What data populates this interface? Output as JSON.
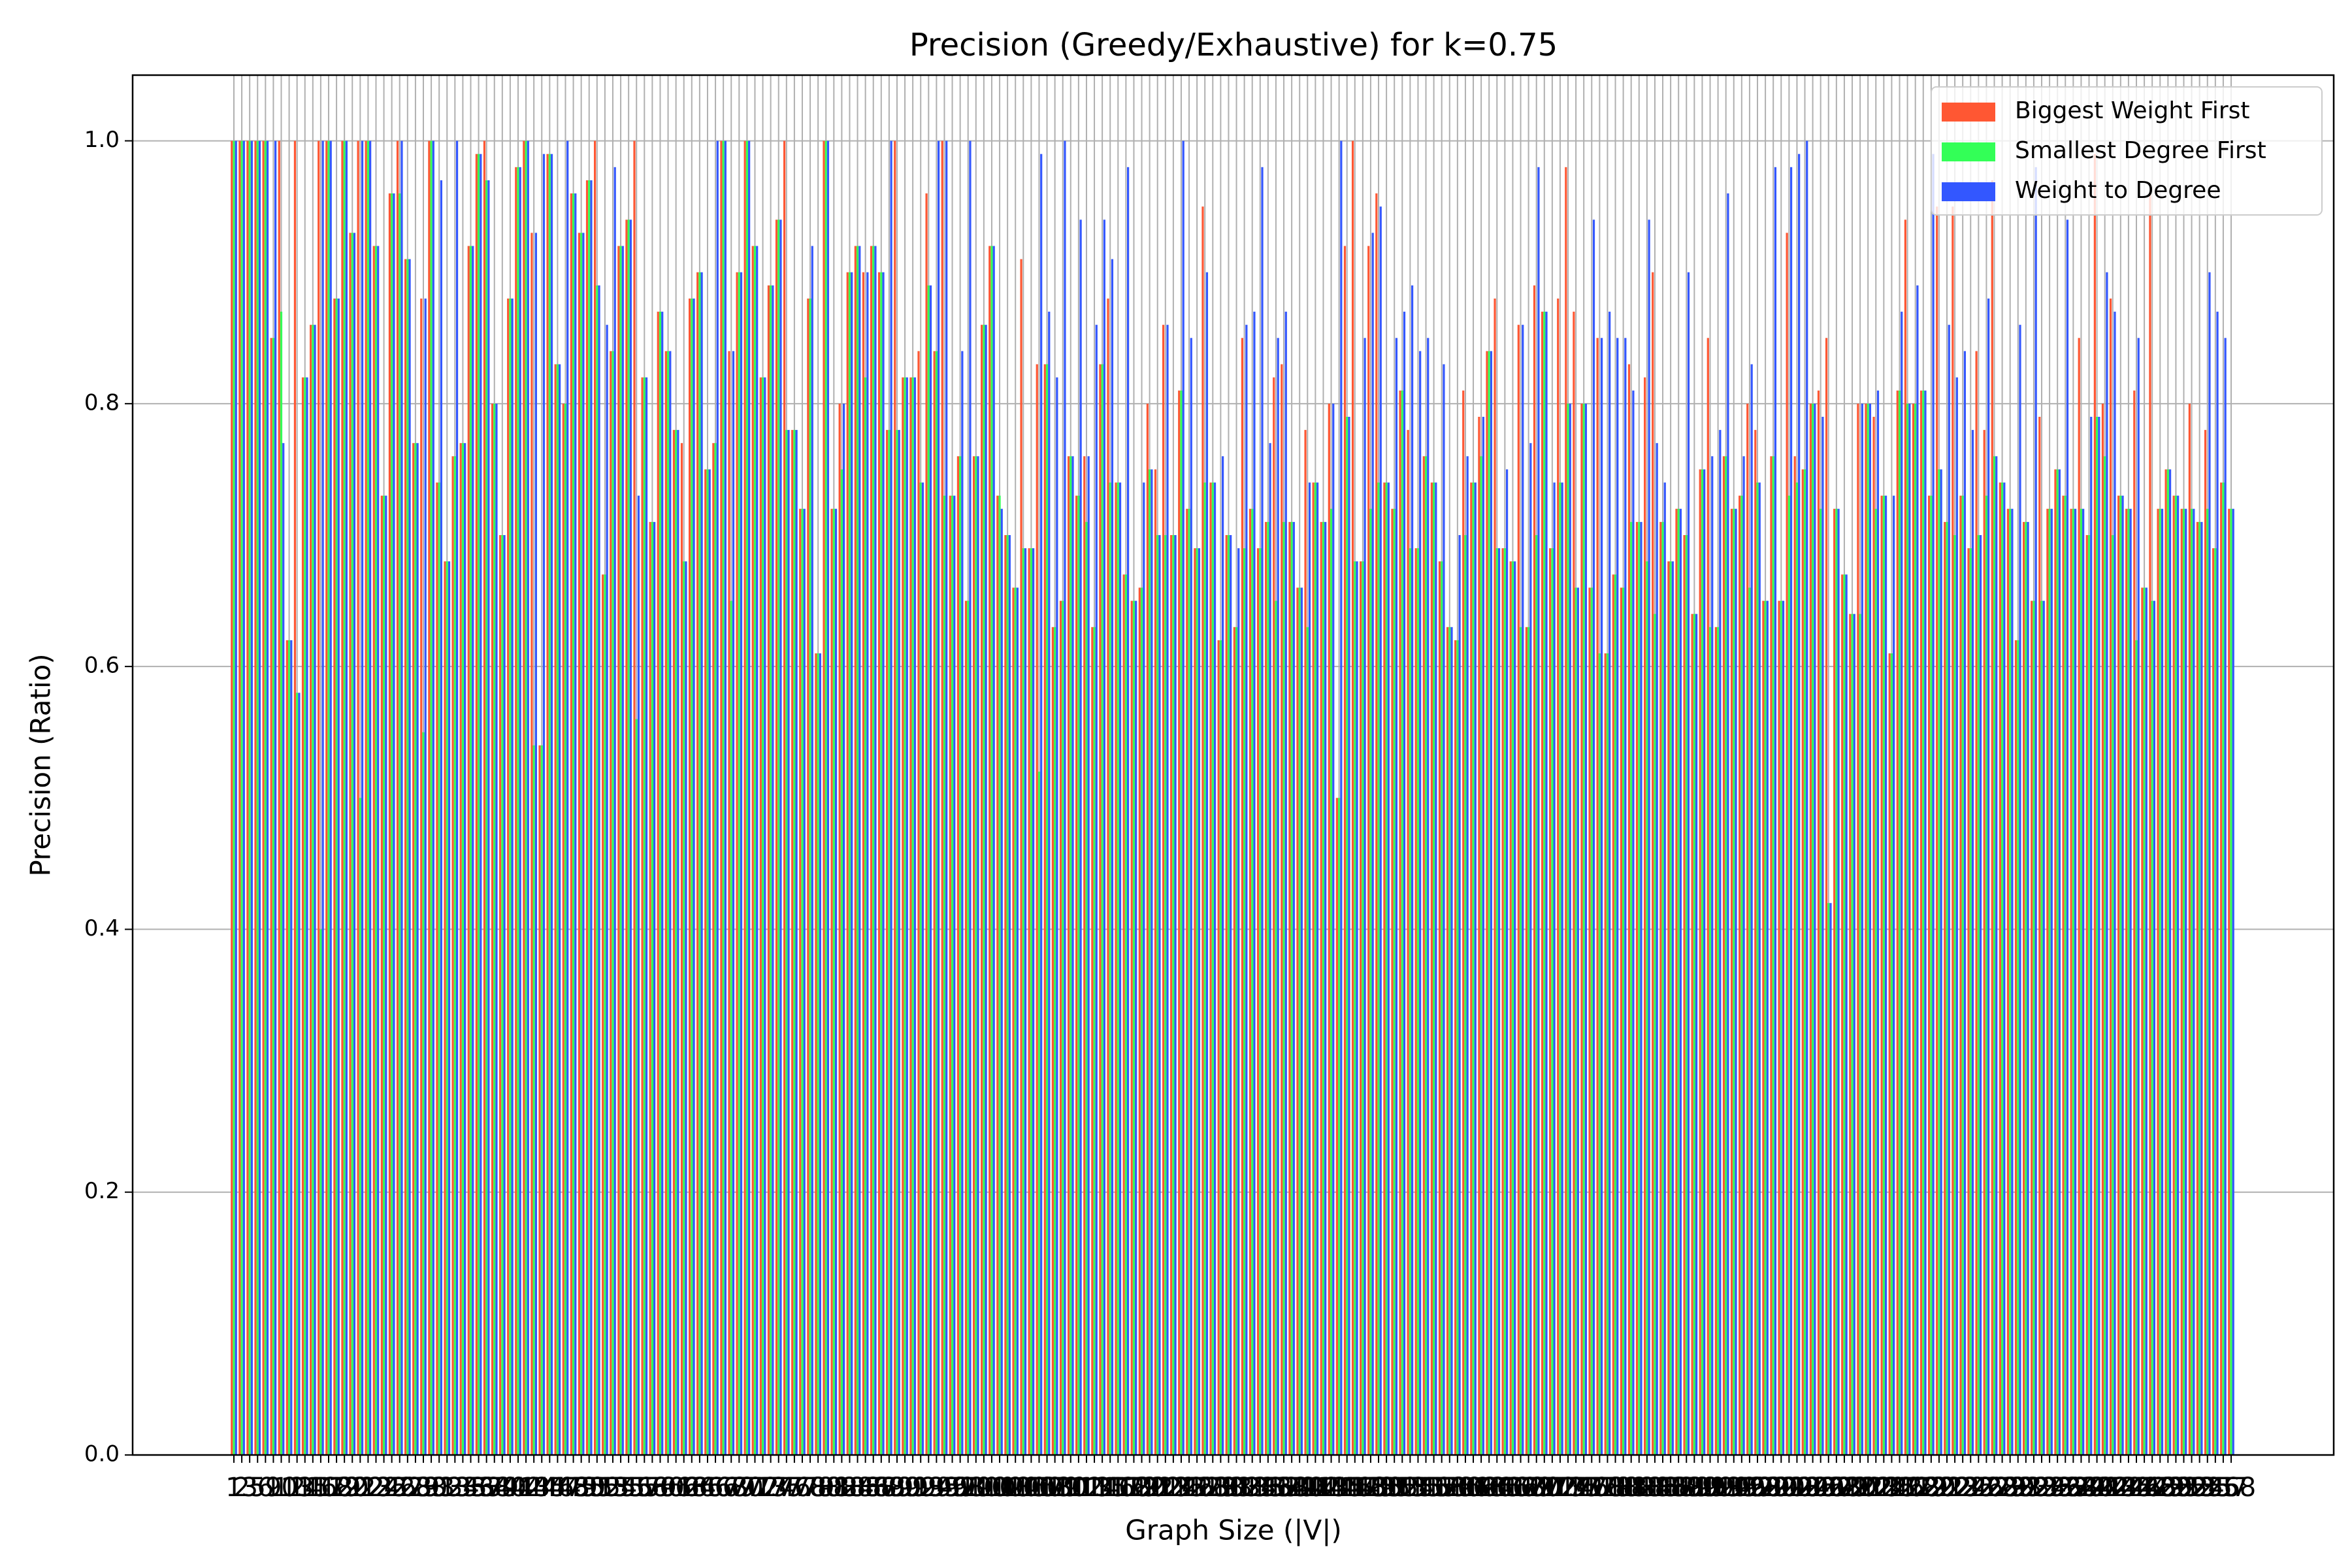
{
  "chart_data": {
    "type": "bar",
    "title": "Precision (Greedy/Exhaustive) for k=0.75",
    "xlabel": "Graph Size (|V|)",
    "ylabel": "Precision (Ratio)",
    "categories": [
      1,
      2,
      3,
      5,
      6,
      9,
      10,
      12,
      13,
      14,
      15,
      16,
      17,
      18,
      19,
      20,
      21,
      22,
      23,
      24,
      25,
      26,
      27,
      28,
      29,
      30,
      31,
      32,
      33,
      34,
      35,
      36,
      37,
      38,
      39,
      40,
      41,
      42,
      43,
      44,
      45,
      46,
      47,
      48,
      49,
      50,
      51,
      52,
      53,
      54,
      55,
      56,
      57,
      58,
      59,
      60,
      61,
      62,
      63,
      64,
      65,
      66,
      67,
      68,
      69,
      70,
      71,
      72,
      73,
      74,
      75,
      76,
      77,
      78,
      79,
      80,
      81,
      82,
      83,
      84,
      85,
      86,
      87,
      88,
      89,
      90,
      91,
      92,
      93,
      94,
      95,
      96,
      97,
      98,
      99,
      100,
      101,
      102,
      103,
      104,
      105,
      106,
      107,
      108,
      109,
      110,
      111,
      112,
      113,
      114,
      115,
      116,
      117,
      118,
      119,
      120,
      121,
      122,
      123,
      124,
      125,
      126,
      127,
      128,
      129,
      130,
      131,
      132,
      133,
      134,
      135,
      136,
      137,
      138,
      139,
      140,
      141,
      142,
      143,
      144,
      145,
      146,
      147,
      148,
      149,
      150,
      151,
      152,
      153,
      154,
      155,
      156,
      157,
      158,
      159,
      160,
      161,
      162,
      163,
      164,
      165,
      166,
      167,
      168,
      169,
      170,
      171,
      172,
      173,
      174,
      175,
      176,
      177,
      178,
      179,
      180,
      181,
      182,
      183,
      184,
      185,
      186,
      187,
      188,
      189,
      190,
      191,
      192,
      193,
      194,
      195,
      196,
      197,
      198,
      199,
      200,
      201,
      202,
      203,
      204,
      205,
      206,
      207,
      208,
      209,
      210,
      211,
      212,
      213,
      214,
      215,
      216,
      217,
      218,
      219,
      220,
      221,
      222,
      223,
      224,
      225,
      226,
      227,
      228,
      229,
      230,
      231,
      232,
      233,
      234,
      235,
      236,
      237,
      238,
      239,
      240,
      241,
      242,
      243,
      244,
      245,
      246,
      247,
      248,
      249,
      250,
      251,
      252,
      253,
      254,
      255,
      256,
      257,
      258
    ],
    "series": [
      {
        "name": "Biggest Weight First",
        "color": "#ff5733",
        "values": [
          1,
          1,
          1,
          1,
          1,
          0.85,
          1,
          0.62,
          1,
          0.82,
          0.86,
          1,
          1,
          0.88,
          1,
          0.93,
          1,
          1,
          0.92,
          0.73,
          0.96,
          1,
          0.91,
          0.77,
          0.88,
          1,
          0.74,
          0.68,
          0.76,
          0.77,
          0.92,
          0.99,
          1,
          0.8,
          0.7,
          0.88,
          0.98,
          1,
          0.93,
          0.54,
          0.99,
          0.83,
          0.8,
          0.96,
          0.93,
          0.97,
          1,
          0.67,
          0.84,
          0.92,
          0.94,
          1,
          0.82,
          0.71,
          0.87,
          0.84,
          0.78,
          0.77,
          0.88,
          0.9,
          0.75,
          0.77,
          1,
          0.84,
          0.9,
          1,
          0.92,
          0.82,
          0.89,
          0.94,
          1,
          0.78,
          0.72,
          0.88,
          0.61,
          1,
          0.72,
          0.8,
          0.9,
          0.92,
          0.9,
          0.92,
          0.9,
          0.78,
          1,
          0.82,
          0.82,
          0.84,
          0.96,
          0.84,
          1,
          0.73,
          0.76,
          0.65,
          0.76,
          0.86,
          0.92,
          0.73,
          0.7,
          0.66,
          0.91,
          0.69,
          0.83,
          0.83,
          0.63,
          0.65,
          0.76,
          0.73,
          0.76,
          0.63,
          0.83,
          0.88,
          0.74,
          0.67,
          0.65,
          0.66,
          0.8,
          0.75,
          0.86,
          0.7,
          0.81,
          0.72,
          0.69,
          0.95,
          0.74,
          0.62,
          0.7,
          0.63,
          0.85,
          0.72,
          0.69,
          0.71,
          0.82,
          0.83,
          0.71,
          0.66,
          0.78,
          0.74,
          0.71,
          0.8,
          0.5,
          0.92,
          1,
          0.68,
          0.92,
          0.96,
          0.74,
          0.72,
          0.81,
          0.78,
          0.69,
          0.76,
          0.74,
          0.68,
          0.63,
          0.62,
          0.81,
          0.74,
          0.79,
          0.84,
          0.88,
          0.69,
          0.68,
          0.86,
          0.63,
          0.89,
          0.87,
          0.69,
          0.88,
          0.98,
          0.87,
          0.8,
          0.66,
          0.85,
          0.61,
          0.67,
          0.66,
          0.83,
          0.71,
          0.82,
          0.9,
          0.71,
          0.68,
          0.72,
          0.7,
          0.64,
          0.75,
          0.85,
          0.63,
          0.76,
          0.72,
          0.73,
          0.8,
          0.78,
          0.65,
          0.76,
          0.65,
          0.93,
          0.76,
          0.75,
          0.8,
          0.81,
          0.85,
          0.72,
          0.67,
          0.64,
          0.8,
          0.8,
          0.79,
          0.73,
          0.61,
          0.81,
          0.94,
          0.8,
          0.81,
          0.73,
          0.95,
          0.71,
          0.95,
          0.73,
          0.69,
          0.84,
          0.78,
          0.97,
          0.74,
          0.72,
          0.62,
          0.71,
          0.65,
          0.79,
          0.72,
          0.75,
          0.73,
          0.72,
          0.85,
          0.7,
          0.99,
          0.8,
          0.88,
          0.73,
          0.72,
          0.81,
          0.66,
          0.96,
          0.72,
          0.75,
          0.73,
          0.72,
          0.8,
          0.71,
          0.78,
          0.69,
          0.74,
          0.72
        ]
      },
      {
        "name": "Smallest Degree First",
        "color": "#33ff57",
        "values": [
          1,
          1,
          1,
          1,
          1,
          0.85,
          0.87,
          0.62,
          0.58,
          0.82,
          0.86,
          0.4,
          1,
          0.88,
          1,
          0.93,
          0.5,
          1,
          0.92,
          0.73,
          0.96,
          0.96,
          0.91,
          0.77,
          0.55,
          1,
          0.74,
          0.68,
          0.76,
          0.77,
          0.92,
          0.99,
          0.97,
          0.8,
          0.7,
          0.88,
          0.98,
          1,
          0.54,
          0.54,
          0.99,
          0.83,
          0.8,
          0.96,
          0.93,
          0.97,
          0.89,
          0.67,
          0.84,
          0.92,
          0.94,
          0.56,
          0.82,
          0.71,
          0.87,
          0.84,
          0.78,
          0.68,
          0.88,
          0.9,
          0.75,
          0.77,
          1,
          0.65,
          0.9,
          1,
          0.92,
          0.82,
          0.89,
          0.94,
          0.78,
          0.78,
          0.72,
          0.88,
          0.61,
          1,
          0.72,
          0.75,
          0.9,
          0.92,
          0.82,
          0.92,
          0.9,
          0.78,
          0.78,
          0.82,
          0.82,
          0.74,
          0.89,
          0.84,
          0.73,
          0.73,
          0.76,
          0.65,
          0.76,
          0.86,
          0.92,
          0.73,
          0.7,
          0.66,
          0.69,
          0.69,
          0.52,
          0.83,
          0.63,
          0.65,
          0.76,
          0.73,
          0.71,
          0.63,
          0.83,
          0.74,
          0.74,
          0.67,
          0.65,
          0.66,
          0.75,
          0.7,
          0.7,
          0.7,
          0.81,
          0.72,
          0.69,
          0.74,
          0.74,
          0.62,
          0.7,
          0.63,
          0.69,
          0.72,
          0.69,
          0.71,
          0.65,
          0.71,
          0.71,
          0.66,
          0.63,
          0.74,
          0.71,
          0.72,
          0.5,
          0.79,
          0.68,
          0.68,
          0.72,
          0.74,
          0.74,
          0.72,
          0.81,
          0.69,
          0.69,
          0.76,
          0.74,
          0.68,
          0.63,
          0.62,
          0.7,
          0.74,
          0.76,
          0.84,
          0.69,
          0.69,
          0.68,
          0.63,
          0.63,
          0.7,
          0.87,
          0.69,
          0.74,
          0.8,
          0.66,
          0.8,
          0.66,
          0.61,
          0.61,
          0.67,
          0.66,
          0.71,
          0.71,
          0.68,
          0.64,
          0.71,
          0.68,
          0.72,
          0.7,
          0.64,
          0.75,
          0.63,
          0.63,
          0.76,
          0.72,
          0.73,
          0.66,
          0.74,
          0.65,
          0.76,
          0.65,
          0.73,
          0.74,
          0.75,
          0.8,
          0.72,
          0.42,
          0.72,
          0.67,
          0.64,
          0.64,
          0.8,
          0.72,
          0.73,
          0.61,
          0.81,
          0.8,
          0.8,
          0.81,
          0.73,
          0.75,
          0.71,
          0.7,
          0.73,
          0.69,
          0.7,
          0.73,
          0.76,
          0.74,
          0.72,
          0.62,
          0.71,
          0.65,
          0.65,
          0.72,
          0.75,
          0.73,
          0.72,
          0.72,
          0.7,
          0.79,
          0.76,
          0.7,
          0.73,
          0.72,
          0.62,
          0.66,
          0.65,
          0.72,
          0.75,
          0.73,
          0.72,
          0.72,
          0.71,
          0.72,
          0.69,
          0.74,
          0.72
        ]
      },
      {
        "name": "Weight to Degree",
        "color": "#3357ff",
        "values": [
          1,
          1,
          1,
          1,
          1,
          1,
          0.77,
          0.62,
          0.58,
          0.82,
          0.86,
          1,
          1,
          0.88,
          1,
          0.93,
          1,
          1,
          0.92,
          0.73,
          0.96,
          1,
          0.91,
          0.77,
          0.88,
          1,
          0.97,
          0.68,
          1,
          0.77,
          0.92,
          0.99,
          0.97,
          0.8,
          0.7,
          0.88,
          0.98,
          1,
          0.93,
          0.99,
          0.99,
          0.83,
          1,
          0.96,
          0.93,
          0.97,
          0.89,
          0.86,
          0.98,
          0.92,
          0.94,
          0.73,
          0.82,
          0.71,
          0.87,
          0.84,
          0.78,
          0.68,
          0.88,
          0.9,
          0.75,
          1,
          1,
          0.84,
          0.9,
          1,
          0.92,
          0.82,
          0.89,
          0.94,
          0.78,
          0.78,
          0.72,
          0.92,
          0.61,
          1,
          0.72,
          0.8,
          0.9,
          0.92,
          0.9,
          0.92,
          0.9,
          1,
          0.78,
          0.82,
          0.82,
          0.74,
          0.89,
          1,
          1,
          0.73,
          0.84,
          1,
          0.76,
          0.86,
          0.92,
          0.72,
          0.7,
          0.66,
          0.69,
          0.69,
          0.99,
          0.87,
          0.82,
          1,
          0.76,
          0.94,
          0.76,
          0.86,
          0.94,
          0.91,
          0.74,
          0.98,
          0.65,
          0.74,
          0.75,
          0.7,
          0.86,
          0.7,
          1,
          0.85,
          0.69,
          0.9,
          0.74,
          0.76,
          0.7,
          0.69,
          0.86,
          0.87,
          0.98,
          0.77,
          0.85,
          0.87,
          0.71,
          0.66,
          0.74,
          0.74,
          0.71,
          0.8,
          1,
          0.79,
          0.68,
          0.85,
          0.93,
          0.95,
          0.74,
          0.85,
          0.87,
          0.89,
          0.84,
          0.85,
          0.74,
          0.83,
          0.63,
          0.7,
          0.76,
          0.74,
          0.79,
          0.84,
          0.69,
          0.75,
          0.68,
          0.86,
          0.77,
          0.98,
          0.87,
          0.74,
          0.74,
          0.8,
          0.66,
          0.8,
          0.94,
          0.85,
          0.87,
          0.85,
          0.85,
          0.81,
          0.71,
          0.94,
          0.77,
          0.74,
          0.68,
          0.72,
          0.9,
          0.64,
          0.75,
          0.76,
          0.78,
          0.96,
          0.72,
          0.76,
          0.83,
          0.74,
          0.65,
          0.98,
          0.65,
          0.98,
          0.99,
          1,
          0.8,
          0.79,
          0.42,
          0.72,
          0.67,
          0.64,
          0.8,
          0.8,
          0.81,
          0.73,
          0.73,
          0.87,
          0.8,
          0.89,
          0.81,
          0.99,
          0.75,
          0.86,
          0.82,
          0.84,
          0.78,
          0.7,
          0.88,
          0.76,
          0.74,
          0.72,
          0.86,
          0.71,
          0.98,
          0.65,
          0.72,
          0.75,
          0.94,
          0.72,
          0.72,
          0.79,
          0.79,
          0.9,
          0.87,
          0.73,
          0.72,
          0.85,
          0.66,
          0.65,
          0.72,
          0.75,
          0.73,
          0.72,
          0.72,
          0.71,
          0.9,
          0.87,
          0.85,
          0.72
        ]
      }
    ],
    "ylim": [
      0,
      1.05
    ],
    "yticks": [
      {
        "value": 0,
        "label": "0.0"
      },
      0.2,
      0.4,
      0.6,
      0.8,
      {
        "value": 1,
        "label": "1.0"
      }
    ],
    "grid": true,
    "legend": "upper right"
  }
}
